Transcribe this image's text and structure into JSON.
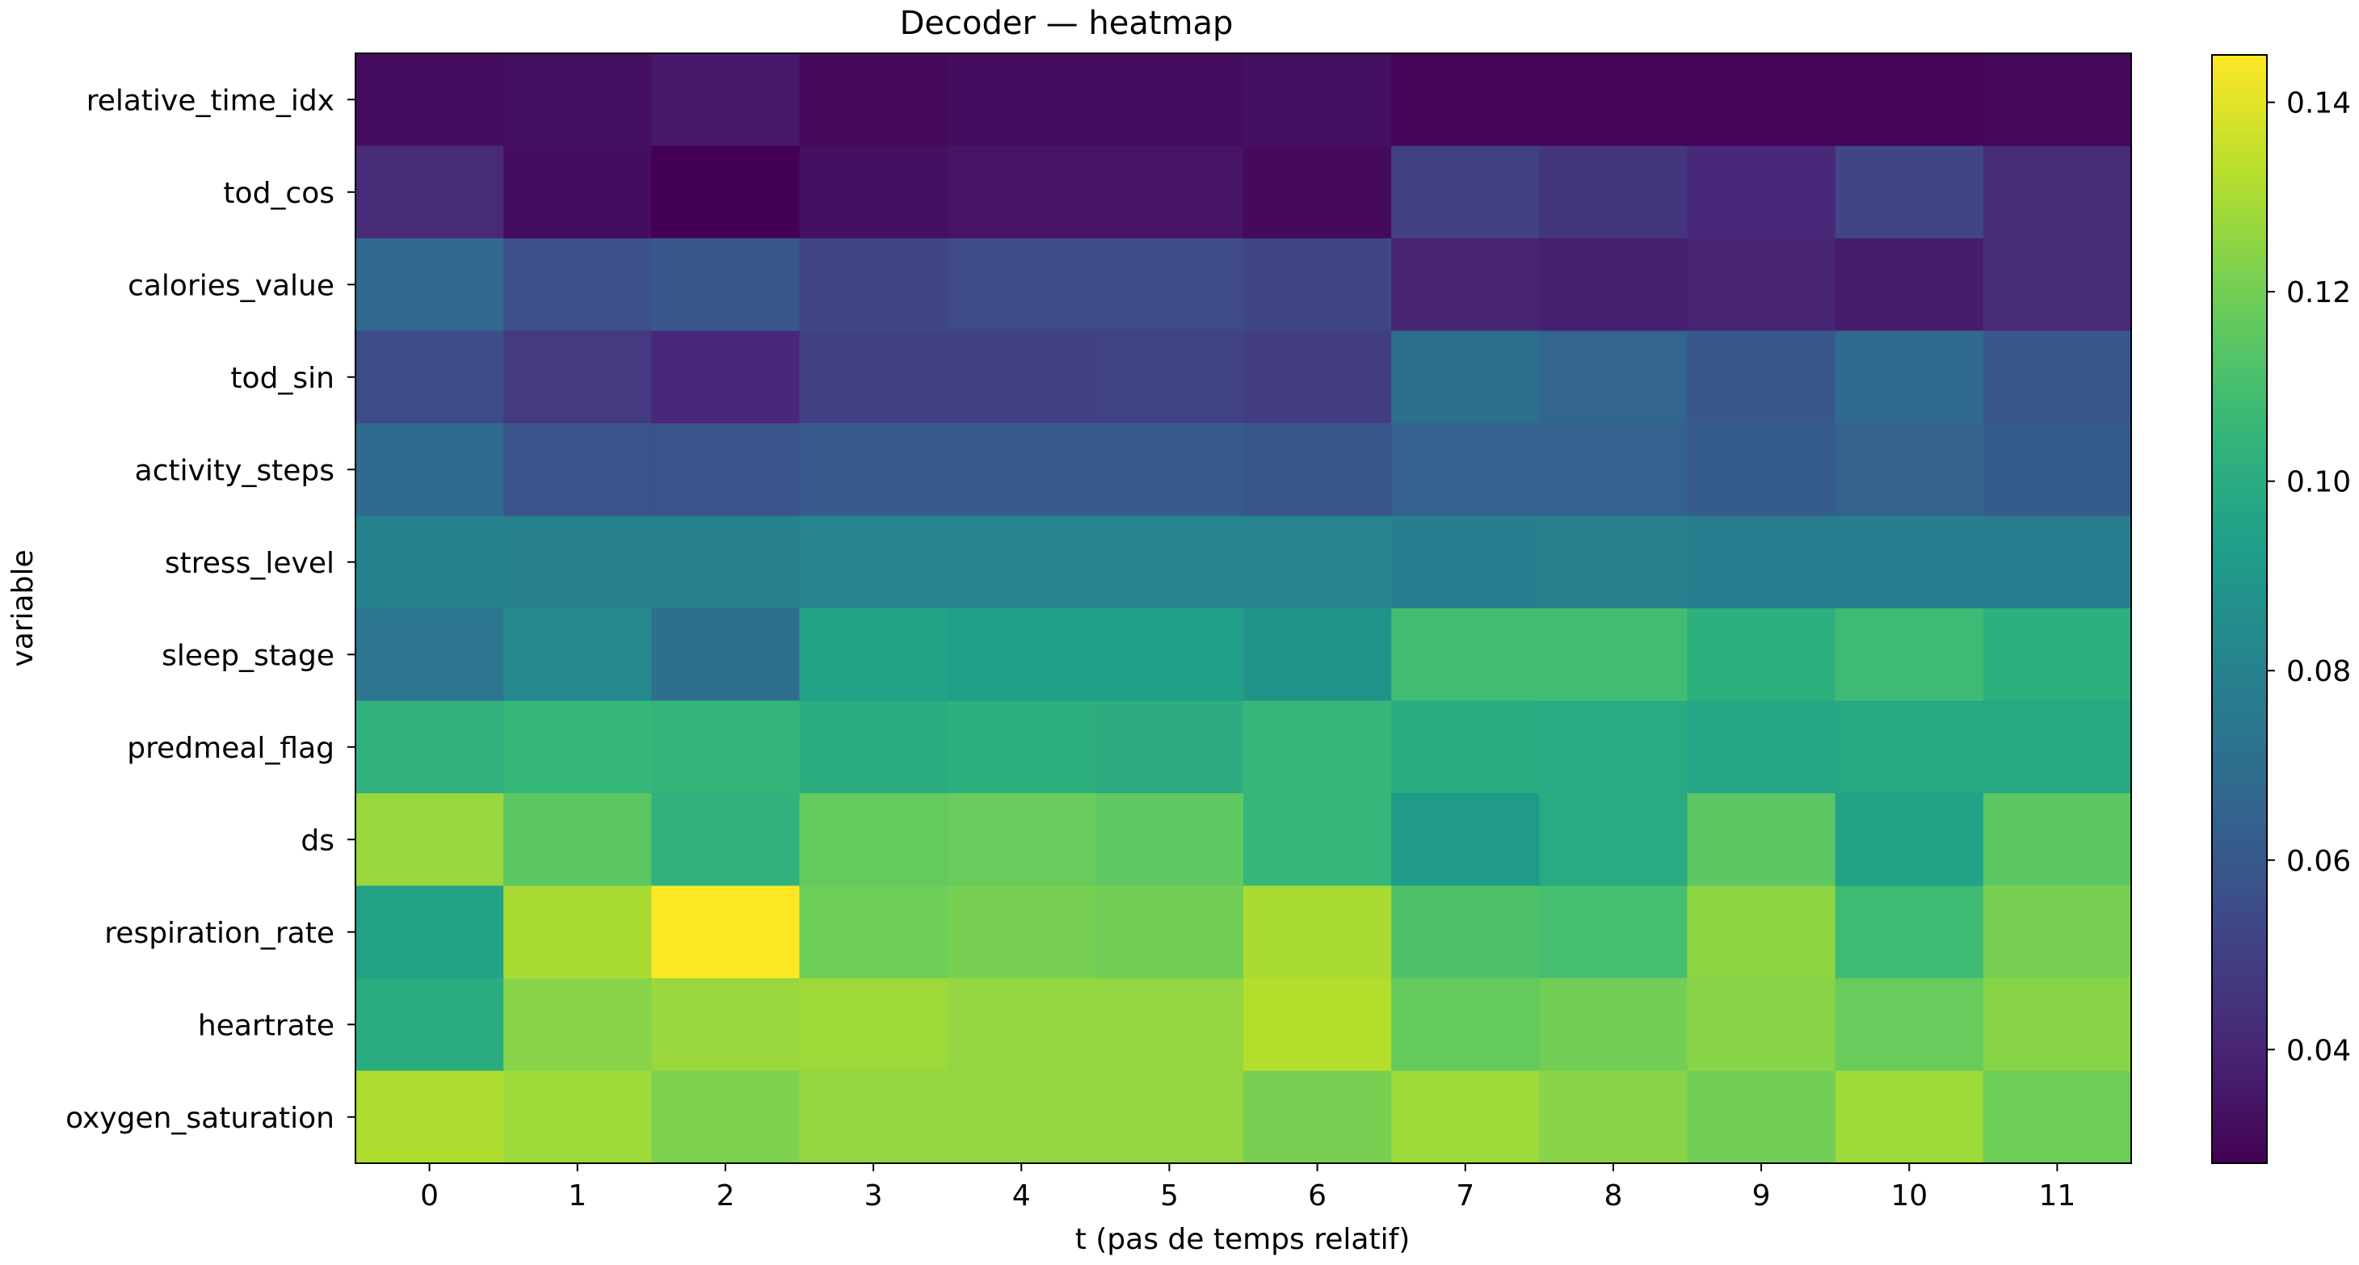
{
  "chart_data": {
    "type": "heatmap",
    "title": "Decoder — heatmap",
    "xlabel": "t (pas de temps relatif)",
    "ylabel": "variable",
    "x": [
      0,
      1,
      2,
      3,
      4,
      5,
      6,
      7,
      8,
      9,
      10,
      11
    ],
    "y": [
      "relative_time_idx",
      "tod_cos",
      "calories_value",
      "tod_sin",
      "activity_steps",
      "stress_level",
      "sleep_stage",
      "predmeal_flag",
      "ds",
      "respiration_rate",
      "heartrate",
      "oxygen_saturation"
    ],
    "values": [
      [
        0.032,
        0.033,
        0.036,
        0.031,
        0.032,
        0.032,
        0.033,
        0.029,
        0.029,
        0.029,
        0.029,
        0.03
      ],
      [
        0.042,
        0.032,
        0.028,
        0.033,
        0.034,
        0.034,
        0.031,
        0.05,
        0.046,
        0.041,
        0.052,
        0.042
      ],
      [
        0.067,
        0.056,
        0.06,
        0.052,
        0.054,
        0.054,
        0.052,
        0.04,
        0.038,
        0.04,
        0.037,
        0.042
      ],
      [
        0.055,
        0.048,
        0.041,
        0.05,
        0.05,
        0.051,
        0.049,
        0.07,
        0.066,
        0.06,
        0.068,
        0.059
      ],
      [
        0.068,
        0.058,
        0.058,
        0.061,
        0.061,
        0.061,
        0.059,
        0.064,
        0.064,
        0.062,
        0.065,
        0.062
      ],
      [
        0.08,
        0.079,
        0.079,
        0.081,
        0.081,
        0.081,
        0.081,
        0.078,
        0.079,
        0.078,
        0.078,
        0.078
      ],
      [
        0.074,
        0.083,
        0.07,
        0.095,
        0.094,
        0.094,
        0.088,
        0.109,
        0.109,
        0.102,
        0.108,
        0.102
      ],
      [
        0.103,
        0.106,
        0.105,
        0.1,
        0.102,
        0.101,
        0.106,
        0.1,
        0.099,
        0.097,
        0.098,
        0.098
      ],
      [
        0.127,
        0.115,
        0.103,
        0.117,
        0.118,
        0.116,
        0.106,
        0.091,
        0.099,
        0.115,
        0.095,
        0.115
      ],
      [
        0.095,
        0.13,
        0.145,
        0.119,
        0.121,
        0.12,
        0.13,
        0.112,
        0.11,
        0.125,
        0.108,
        0.121
      ],
      [
        0.1,
        0.124,
        0.127,
        0.128,
        0.126,
        0.126,
        0.132,
        0.117,
        0.12,
        0.124,
        0.118,
        0.124
      ],
      [
        0.131,
        0.128,
        0.122,
        0.126,
        0.126,
        0.126,
        0.121,
        0.128,
        0.124,
        0.12,
        0.128,
        0.119
      ]
    ],
    "colormap": "viridis",
    "zlim": [
      0.028,
      0.145
    ],
    "colorbar_ticks": [
      0.04,
      0.06,
      0.08,
      0.1,
      0.12,
      0.14
    ],
    "colorbar_tick_labels": [
      "0.04",
      "0.06",
      "0.08",
      "0.10",
      "0.12",
      "0.14"
    ],
    "grid": false
  }
}
